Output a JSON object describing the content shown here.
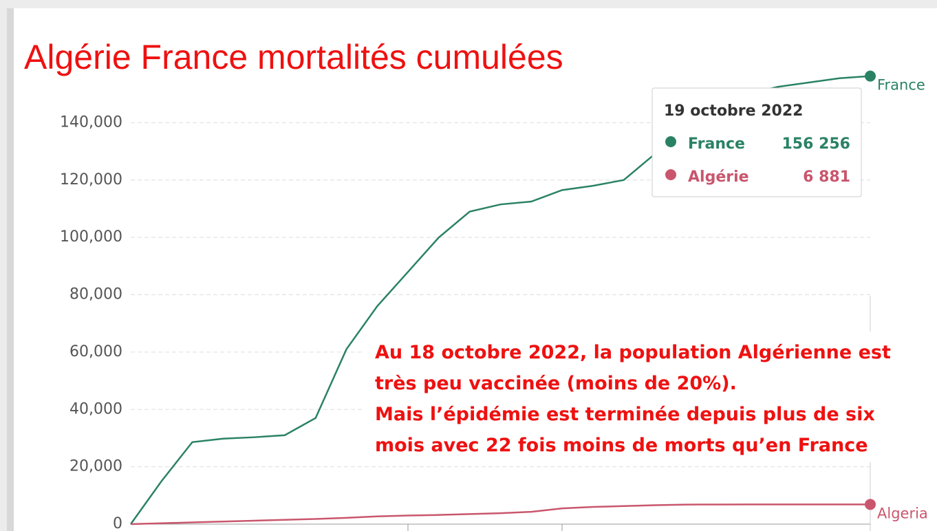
{
  "chart_data": {
    "type": "line",
    "title": "Algérie France mortalités cumulées",
    "series": [
      {
        "name": "France",
        "color": "#2a8264",
        "values": [
          0,
          15000,
          28600,
          29800,
          30300,
          31000,
          37000,
          61000,
          76000,
          88000,
          100000,
          109000,
          111500,
          112500,
          116500,
          118000,
          120000,
          129000,
          139000,
          146000,
          150000,
          152500,
          154000,
          155500,
          156256
        ]
      },
      {
        "name": "Algeria",
        "color": "#c9566d",
        "values": [
          0,
          300,
          600,
          900,
          1200,
          1500,
          1800,
          2200,
          2700,
          3000,
          3200,
          3500,
          3800,
          4300,
          5500,
          6000,
          6300,
          6600,
          6800,
          6850,
          6860,
          6870,
          6875,
          6878,
          6881
        ]
      }
    ],
    "ylim": [
      0,
      160000
    ],
    "yticks": [
      0,
      {
        "value": 20000,
        "label": "20,000"
      },
      {
        "value": 40000,
        "label": "40,000"
      },
      {
        "value": 60000,
        "label": "60,000"
      },
      {
        "value": 80000,
        "label": "80,000"
      },
      {
        "value": 100000,
        "label": "100,000"
      },
      {
        "value": 120000,
        "label": "120,000"
      },
      {
        "value": 140000,
        "label": "140,000"
      }
    ],
    "grid": true,
    "tooltip": {
      "date": "19 octobre 2022",
      "rows": [
        {
          "name": "France",
          "value": "156 256"
        },
        {
          "name": "Algérie",
          "value": "6 881"
        }
      ]
    },
    "annotation": [
      "Au 18 octobre 2022, la population Algérienne est",
      "très peu vaccinée (moins de 20%).",
      "Mais l’épidémie est terminée depuis plus de six",
      "mois avec 22 fois moins de morts qu’en France"
    ]
  }
}
